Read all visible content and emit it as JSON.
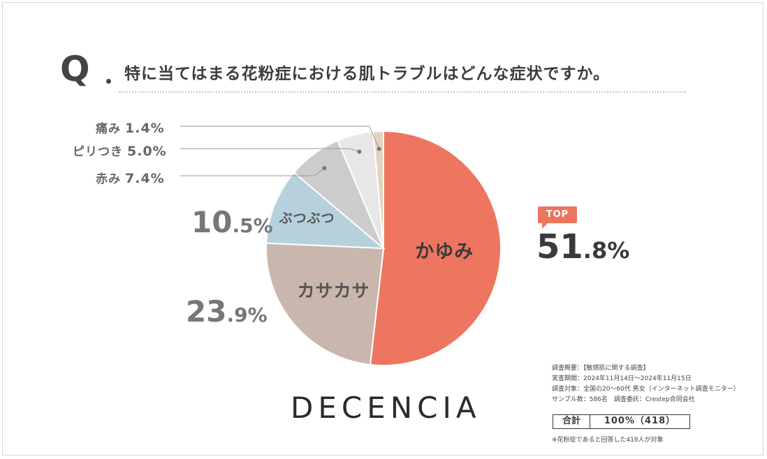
{
  "title": {
    "q": "Q",
    "text": "特に当てはまる花粉症における肌トラブルはどんな症状ですか。"
  },
  "chart_data": {
    "type": "pie",
    "slices": [
      {
        "label": "かゆみ",
        "value": 51.8,
        "value_int": "51",
        "value_dec": ".8%",
        "color": "#ee7560"
      },
      {
        "label": "カサカサ",
        "value": 23.9,
        "value_int": "23",
        "value_dec": ".9%",
        "color": "#c9b6ac"
      },
      {
        "label": "ぶつぶつ",
        "value": 10.5,
        "value_int": "10",
        "value_dec": ".5%",
        "color": "#b5d2dc"
      },
      {
        "label": "赤み",
        "value": 7.4,
        "value_int": "7",
        "value_dec": ".4%",
        "color": "#cccccc"
      },
      {
        "label": "ピリつき",
        "value": 5.0,
        "value_int": "5",
        "value_dec": ".0%",
        "color": "#e7e7e7"
      },
      {
        "label": "痛み",
        "value": 1.4,
        "value_int": "1",
        "value_dec": ".4%",
        "color": "#e3d3c0"
      }
    ],
    "top_badge": "TOP"
  },
  "brand": "DECENCIA",
  "survey": {
    "overview": "調査概要：【敏感肌に関する調査】",
    "period": "実査期間：2024年11月14日〜2024年11月15日",
    "target": "調査対象：全国の20〜60代 男女（インターネット調査モニター）",
    "sample": "サンプル数：586名　調査委託：Crestep合同会社",
    "total_label": "合計",
    "total_value": "100%（418）",
    "footnote": "※花粉症であると回答した418人が対象"
  }
}
